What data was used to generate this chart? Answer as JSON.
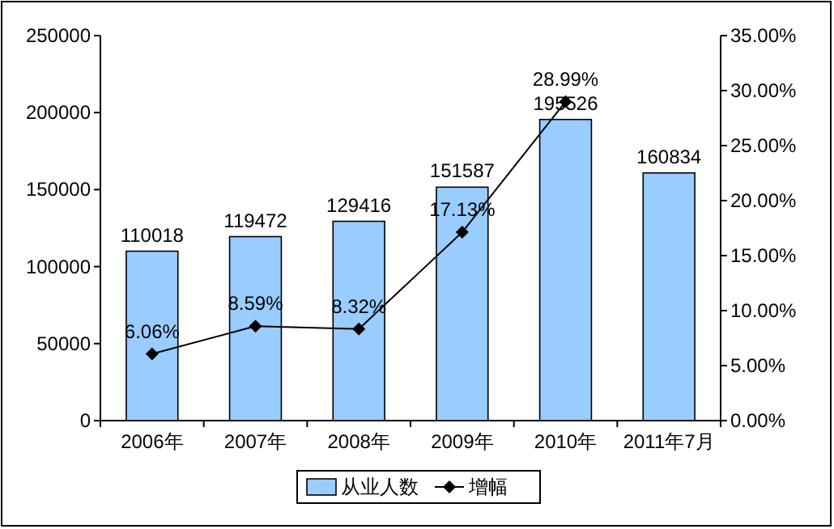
{
  "chart_data": {
    "type": "bar",
    "categories": [
      "2006年",
      "2007年",
      "2008年",
      "2009年",
      "2010年",
      "2011年7月"
    ],
    "series": [
      {
        "name": "从业人数",
        "color": "#99ccff",
        "values": [
          110018,
          119472,
          129416,
          151587,
          195526,
          160834
        ],
        "value_labels": [
          "110018",
          "119472",
          "129416",
          "151587",
          "195526",
          "160834"
        ]
      },
      {
        "name": "增幅",
        "type": "line",
        "axis": "y2",
        "color": "#000000",
        "marker": "diamond",
        "values": [
          6.06,
          8.59,
          8.32,
          17.13,
          28.99,
          null
        ],
        "value_labels": [
          "6.06%",
          "8.59%",
          "8.32%",
          "17.13%",
          "28.99%",
          null
        ]
      }
    ],
    "ylim": [
      0,
      250000
    ],
    "yticks": [
      0,
      50000,
      100000,
      150000,
      200000,
      250000
    ],
    "y2lim": [
      0,
      35
    ],
    "y2ticks": [
      {
        "value": 0,
        "label": "0.00%"
      },
      {
        "value": 5,
        "label": "5.00%"
      },
      {
        "value": 10,
        "label": "10.00%"
      },
      {
        "value": 15,
        "label": "15.00%"
      },
      {
        "value": 20,
        "label": "20.00%"
      },
      {
        "value": 25,
        "label": "25.00%"
      },
      {
        "value": 30,
        "label": "30.00%"
      },
      {
        "value": 35,
        "label": "35.00%"
      }
    ],
    "legend": "bottom"
  }
}
